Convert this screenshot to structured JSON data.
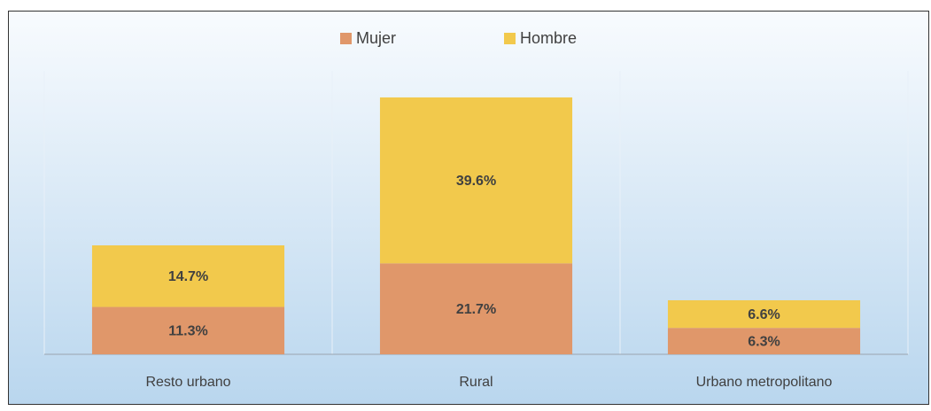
{
  "chart_data": {
    "type": "bar",
    "stacked": true,
    "categories": [
      "Resto urbano",
      "Rural",
      "Urbano metropolitano"
    ],
    "series": [
      {
        "name": "Mujer",
        "color": "#e0976a",
        "values": [
          11.3,
          21.7,
          6.3
        ],
        "value_labels": [
          "11.3%",
          "21.7%",
          "6.3%"
        ]
      },
      {
        "name": "Hombre",
        "color": "#f2c94c",
        "values": [
          14.7,
          39.6,
          6.6
        ],
        "value_labels": [
          "14.7%",
          "39.6%",
          "6.6%"
        ]
      }
    ],
    "legend": "top"
  }
}
